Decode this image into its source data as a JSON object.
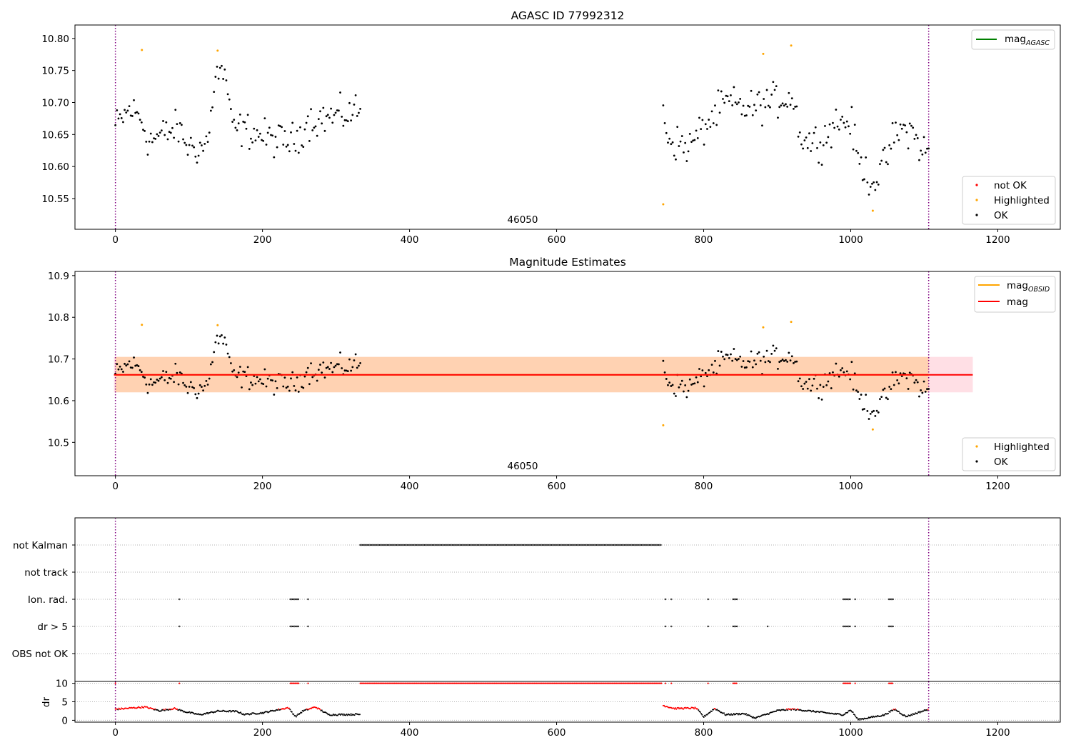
{
  "chart_data": [
    {
      "type": "scatter",
      "title": "AGASC ID 77992312",
      "xlim": [
        -55,
        1285
      ],
      "ylim": [
        10.502,
        10.821
      ],
      "xticks": [
        0,
        200,
        400,
        600,
        800,
        1000,
        1200
      ],
      "yticks": [
        10.55,
        10.6,
        10.65,
        10.7,
        10.75,
        10.8
      ],
      "ytick_labels": [
        "10.55",
        "10.60",
        "10.65",
        "10.70",
        "10.75",
        "10.80"
      ],
      "annotation": "46050",
      "vlines": [
        0,
        1106
      ],
      "legend_top": {
        "placement": "top-right",
        "entries": [
          {
            "name": "mag",
            "sub": "AGASC",
            "color": "#008000"
          }
        ]
      },
      "legend_bottom": {
        "placement": "bottom-right",
        "entries": [
          {
            "name": "not OK",
            "color": "#ff0000"
          },
          {
            "name": "Highlighted",
            "color": "#ffa500"
          },
          {
            "name": "OK",
            "color": "#000000"
          }
        ]
      },
      "segments": [
        {
          "x0": 0,
          "x1": 333,
          "n": 160,
          "keys": [
            [
              0,
              10.662
            ],
            [
              20,
              10.69
            ],
            [
              35,
              10.675
            ],
            [
              45,
              10.64
            ],
            [
              65,
              10.65
            ],
            [
              85,
              10.66
            ],
            [
              100,
              10.63
            ],
            [
              120,
              10.63
            ],
            [
              128,
              10.65
            ],
            [
              135,
              10.745
            ],
            [
              150,
              10.745
            ],
            [
              158,
              10.66
            ],
            [
              185,
              10.655
            ],
            [
              205,
              10.645
            ],
            [
              225,
              10.64
            ],
            [
              245,
              10.64
            ],
            [
              260,
              10.67
            ],
            [
              280,
              10.675
            ],
            [
              310,
              10.68
            ],
            [
              333,
              10.69
            ]
          ],
          "amp": 0.03
        },
        {
          "x0": 745,
          "x1": 1106,
          "n": 170,
          "keys": [
            [
              745,
              10.68
            ],
            [
              755,
              10.64
            ],
            [
              780,
              10.63
            ],
            [
              800,
              10.66
            ],
            [
              830,
              10.7
            ],
            [
              860,
              10.69
            ],
            [
              890,
              10.7
            ],
            [
              920,
              10.71
            ],
            [
              935,
              10.64
            ],
            [
              960,
              10.64
            ],
            [
              980,
              10.67
            ],
            [
              1000,
              10.67
            ],
            [
              1010,
              10.61
            ],
            [
              1030,
              10.575
            ],
            [
              1045,
              10.6
            ],
            [
              1060,
              10.65
            ],
            [
              1080,
              10.66
            ],
            [
              1095,
              10.63
            ],
            [
              1106,
              10.62
            ]
          ],
          "amp": 0.03
        }
      ],
      "highlighted": [
        [
          36,
          10.782
        ],
        [
          139,
          10.781
        ],
        [
          745,
          10.541
        ],
        [
          881,
          10.776
        ],
        [
          919,
          10.789
        ],
        [
          1030,
          10.531
        ]
      ]
    },
    {
      "type": "scatter",
      "title": "Magnitude Estimates",
      "xlim": [
        -55,
        1285
      ],
      "ylim": [
        10.42,
        10.91
      ],
      "xticks": [
        0,
        200,
        400,
        600,
        800,
        1000,
        1200
      ],
      "yticks": [
        10.5,
        10.6,
        10.7,
        10.8,
        10.9
      ],
      "ytick_labels": [
        "10.5",
        "10.6",
        "10.7",
        "10.8",
        "10.9"
      ],
      "annotation": "46050",
      "vlines": [
        0,
        1106
      ],
      "mag_line": 10.662,
      "mag_line_xrange": [
        -2,
        1166
      ],
      "band_pink": [
        10.62,
        10.705
      ],
      "band_orange_xrange": [
        0,
        1106
      ],
      "legend_top": {
        "placement": "top-right",
        "entries": [
          {
            "name": "mag",
            "sub": "OBSID",
            "color": "#ffa500"
          },
          {
            "name": "mag",
            "sub": "",
            "color": "#ff0000"
          }
        ]
      },
      "legend_bottom": {
        "placement": "bottom-right",
        "entries": [
          {
            "name": "Highlighted",
            "color": "#ffa500"
          },
          {
            "name": "OK",
            "color": "#000000"
          }
        ]
      }
    },
    {
      "type": "scatter",
      "xlim": [
        -55,
        1285
      ],
      "categories": [
        "not Kalman",
        "not track",
        "Ion. rad.",
        "dr > 5",
        "OBS not OK"
      ],
      "vlines": [
        0,
        1106
      ],
      "flags": {
        "not Kalman": [
          [
            333,
            743
          ]
        ],
        "not track": [],
        "Ion. rad.": [
          [
            87,
            87
          ],
          [
            238,
            250
          ],
          [
            262,
            262
          ],
          [
            748,
            748
          ],
          [
            756,
            756
          ],
          [
            806,
            806
          ],
          [
            840,
            846
          ],
          [
            990,
            1000
          ],
          [
            1006,
            1006
          ],
          [
            1052,
            1058
          ]
        ],
        "dr > 5": [
          [
            87,
            87
          ],
          [
            238,
            250
          ],
          [
            262,
            262
          ],
          [
            748,
            748
          ],
          [
            756,
            756
          ],
          [
            806,
            806
          ],
          [
            840,
            846
          ],
          [
            887,
            887
          ],
          [
            990,
            1000
          ],
          [
            1006,
            1006
          ],
          [
            1052,
            1058
          ]
        ],
        "OBS not OK": []
      }
    },
    {
      "type": "scatter",
      "ylabel": "dr",
      "xlim": [
        -55,
        1285
      ],
      "ylim": [
        -0.5,
        10.5
      ],
      "yticks": [
        0,
        5,
        10
      ],
      "ytick_labels": [
        "0",
        "5",
        "10"
      ],
      "xticks": [
        0,
        200,
        400,
        600,
        800,
        1000,
        1200
      ],
      "xtick_labels": [
        "0",
        "200",
        "400",
        "600",
        "800",
        "1000",
        "1200"
      ],
      "vlines": [
        0,
        1106
      ],
      "saturated_ranges": [
        [
          0,
          0
        ],
        [
          87,
          87
        ],
        [
          238,
          250
        ],
        [
          262,
          262
        ],
        [
          333,
          743
        ],
        [
          748,
          748
        ],
        [
          756,
          756
        ],
        [
          806,
          806
        ],
        [
          840,
          846
        ],
        [
          990,
          1000
        ],
        [
          1006,
          1006
        ],
        [
          1052,
          1058
        ]
      ],
      "baseline_keys": [
        [
          0,
          3.0
        ],
        [
          15,
          3.2
        ],
        [
          40,
          3.6
        ],
        [
          60,
          2.6
        ],
        [
          80,
          3.2
        ],
        [
          95,
          2.3
        ],
        [
          115,
          1.5
        ],
        [
          140,
          2.5
        ],
        [
          165,
          2.4
        ],
        [
          175,
          1.6
        ],
        [
          200,
          2.0
        ],
        [
          235,
          3.4
        ],
        [
          245,
          1.0
        ],
        [
          255,
          2.5
        ],
        [
          272,
          3.6
        ],
        [
          290,
          1.5
        ],
        [
          333,
          1.6
        ],
        [
          745,
          4.0
        ],
        [
          760,
          3.2
        ],
        [
          790,
          3.3
        ],
        [
          800,
          0.9
        ],
        [
          815,
          3.2
        ],
        [
          830,
          1.5
        ],
        [
          855,
          1.8
        ],
        [
          870,
          0.6
        ],
        [
          900,
          2.6
        ],
        [
          920,
          3.0
        ],
        [
          950,
          2.4
        ],
        [
          975,
          1.8
        ],
        [
          990,
          1.5
        ],
        [
          1000,
          2.8
        ],
        [
          1010,
          0.2
        ],
        [
          1045,
          1.4
        ],
        [
          1060,
          3.0
        ],
        [
          1075,
          1.0
        ],
        [
          1106,
          3.0
        ]
      ]
    }
  ]
}
